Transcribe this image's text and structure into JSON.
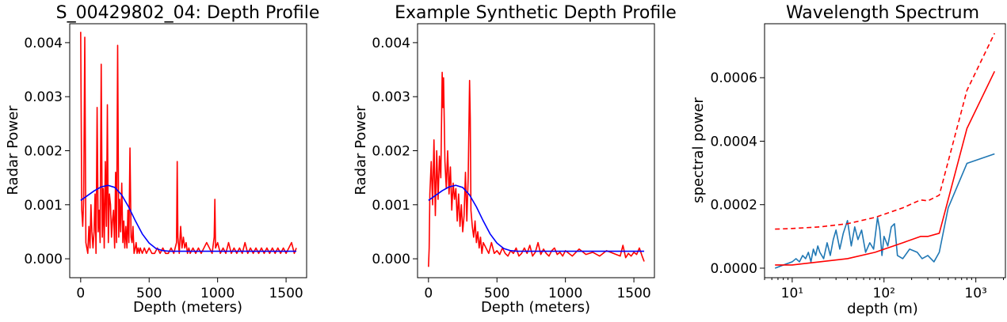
{
  "chart_data": [
    {
      "type": "line",
      "title": "S_00429802_04: Depth Profile",
      "xlabel": "Depth (meters)",
      "ylabel": "Radar Power",
      "xlim": [
        -80,
        1650
      ],
      "ylim": [
        -0.00035,
        0.00435
      ],
      "xticks": [
        0,
        500,
        1000,
        1500
      ],
      "yticks": [
        0.0,
        0.001,
        0.002,
        0.003,
        0.004
      ],
      "ytick_labels": [
        "0.000",
        "0.001",
        "0.002",
        "0.003",
        "0.004"
      ],
      "grid": false,
      "series": [
        {
          "color": "#ff0000",
          "x": [
            0,
            8,
            15,
            22,
            30,
            38,
            45,
            52,
            60,
            68,
            75,
            82,
            90,
            98,
            105,
            112,
            120,
            128,
            135,
            142,
            150,
            158,
            165,
            172,
            180,
            188,
            195,
            202,
            210,
            218,
            225,
            232,
            240,
            248,
            255,
            262,
            270,
            278,
            285,
            292,
            300,
            308,
            315,
            322,
            330,
            338,
            345,
            352,
            360,
            368,
            375,
            382,
            390,
            398,
            405,
            412,
            420,
            428,
            435,
            450,
            465,
            480,
            500,
            520,
            540,
            560,
            580,
            600,
            620,
            640,
            660,
            680,
            700,
            705,
            710,
            720,
            730,
            740,
            750,
            760,
            770,
            780,
            790,
            800,
            820,
            840,
            860,
            880,
            900,
            920,
            940,
            960,
            975,
            980,
            985,
            1000,
            1020,
            1040,
            1060,
            1080,
            1100,
            1120,
            1140,
            1160,
            1180,
            1200,
            1220,
            1240,
            1260,
            1280,
            1300,
            1320,
            1340,
            1360,
            1380,
            1400,
            1420,
            1440,
            1460,
            1480,
            1500,
            1520,
            1540,
            1560,
            1575
          ],
          "y": [
            0.0042,
            0.0009,
            0.0006,
            0.0011,
            0.0041,
            0.0003,
            0.0002,
            0.0001,
            0.0006,
            0.0002,
            0.001,
            0.0005,
            0.0002,
            0.0005,
            0.0012,
            0.0001,
            0.0028,
            0.0005,
            0.0009,
            0.0003,
            0.0036,
            0.0004,
            0.0013,
            0.0002,
            0.0018,
            0.0006,
            0.00285,
            0.0003,
            0.0012,
            0.001,
            0.0004,
            0.0007,
            0.0009,
            0.0002,
            0.0016,
            0.0003,
            0.00395,
            0.0004,
            0.0011,
            0.0005,
            0.0014,
            0.0003,
            0.0007,
            0.0002,
            0.0006,
            0.0002,
            0.0009,
            0.0003,
            0.00205,
            0.0004,
            0.0003,
            0.0006,
            0.0001,
            0.0002,
            0.0003,
            0.0001,
            0.0002,
            0.0001,
            0.0002,
            0.0001,
            0.0002,
            0.0001,
            0.0002,
            0.0001,
            0.0001,
            0.0002,
            0.0001,
            0.0002,
            0.0001,
            0.0001,
            0.0002,
            0.0001,
            0.0003,
            0.0018,
            0.0004,
            0.0001,
            0.0006,
            0.0002,
            0.0004,
            0.0002,
            0.0003,
            0.0001,
            0.0002,
            0.0001,
            0.0002,
            0.0001,
            0.0002,
            0.0001,
            0.0002,
            0.0003,
            0.0002,
            0.0001,
            0.0004,
            0.0011,
            0.0002,
            0.0003,
            0.0001,
            0.0002,
            0.0001,
            0.0003,
            0.0001,
            0.0002,
            0.0001,
            0.0002,
            0.0001,
            0.0003,
            0.0001,
            0.0002,
            0.0001,
            0.0002,
            0.0001,
            0.0002,
            0.0001,
            0.0002,
            0.0001,
            0.0002,
            0.0001,
            0.0002,
            0.0001,
            0.0002,
            0.0001,
            0.0002,
            0.0003,
            0.0001,
            0.0002
          ]
        },
        {
          "color": "#0000ff",
          "x": [
            0,
            50,
            100,
            150,
            200,
            250,
            300,
            350,
            400,
            450,
            500,
            550,
            600,
            650,
            700,
            800,
            1000,
            1200,
            1400,
            1575
          ],
          "y": [
            0.00108,
            0.00117,
            0.00126,
            0.00133,
            0.00136,
            0.00132,
            0.00118,
            0.00096,
            0.0007,
            0.00046,
            0.00029,
            0.00019,
            0.00015,
            0.00014,
            0.00014,
            0.00014,
            0.00014,
            0.00014,
            0.00014,
            0.00014
          ]
        }
      ]
    },
    {
      "type": "line",
      "title": "Example Synthetic Depth Profile",
      "xlabel": "Depth (meters)",
      "ylabel": "Radar Power",
      "xlim": [
        -80,
        1650
      ],
      "ylim": [
        -0.00035,
        0.00435
      ],
      "xticks": [
        0,
        500,
        1000,
        1500
      ],
      "yticks": [
        0.0,
        0.001,
        0.002,
        0.003,
        0.004
      ],
      "ytick_labels": [
        "0.000",
        "0.001",
        "0.002",
        "0.003",
        "0.004"
      ],
      "grid": false,
      "series": [
        {
          "color": "#ff0000",
          "x": [
            0,
            5,
            10,
            20,
            30,
            40,
            50,
            60,
            70,
            80,
            90,
            100,
            105,
            110,
            120,
            130,
            140,
            150,
            160,
            170,
            180,
            190,
            200,
            210,
            220,
            230,
            240,
            250,
            260,
            270,
            280,
            290,
            300,
            305,
            310,
            320,
            330,
            340,
            350,
            360,
            370,
            380,
            390,
            400,
            420,
            440,
            460,
            480,
            500,
            520,
            540,
            560,
            580,
            600,
            620,
            640,
            660,
            680,
            700,
            720,
            740,
            760,
            780,
            800,
            820,
            840,
            860,
            880,
            900,
            920,
            940,
            960,
            980,
            1000,
            1050,
            1100,
            1150,
            1200,
            1250,
            1300,
            1350,
            1400,
            1420,
            1440,
            1460,
            1480,
            1500,
            1520,
            1540,
            1560,
            1575
          ],
          "y": [
            -0.00015,
            0.0002,
            0.0012,
            0.0018,
            0.001,
            0.0022,
            0.0008,
            0.002,
            0.0011,
            0.0019,
            0.0015,
            0.00345,
            0.0028,
            0.00335,
            0.0018,
            0.0013,
            0.002,
            0.0012,
            0.0017,
            0.0009,
            0.0014,
            0.0011,
            0.0013,
            0.0007,
            0.0012,
            0.0006,
            0.001,
            0.0005,
            0.0008,
            0.0016,
            0.0007,
            0.0015,
            0.0033,
            0.0026,
            0.0009,
            0.0006,
            0.0004,
            0.0007,
            0.0003,
            0.0005,
            0.0002,
            0.0004,
            0.0001,
            0.0003,
            0.0002,
            0.0001,
            0.0003,
            0.0001,
            0.00015,
            8e-05,
            0.0002,
            0.0001,
            5e-05,
            0.00015,
            0.0001,
            0.0002,
            5e-05,
            0.0001,
            0.0002,
            0.0001,
            0.00025,
            5e-05,
            0.00012,
            0.0003,
            8e-05,
            0.00018,
            0.0001,
            5e-05,
            0.00015,
            0.0002,
            8e-05,
            0.00012,
            5e-05,
            0.00015,
            5e-05,
            0.00018,
            8e-05,
            0.00012,
            5e-05,
            0.00015,
            0.0001,
            5e-05,
            0.00025,
            2e-05,
            0.0001,
            5e-05,
            0.00012,
            8e-05,
            0.0002,
            5e-05,
            -5e-05
          ]
        },
        {
          "color": "#0000ff",
          "x": [
            0,
            50,
            100,
            150,
            200,
            250,
            300,
            350,
            400,
            450,
            500,
            550,
            600,
            650,
            700,
            800,
            1000,
            1200,
            1400,
            1575
          ],
          "y": [
            0.00108,
            0.00117,
            0.00126,
            0.00133,
            0.00136,
            0.00132,
            0.00118,
            0.00096,
            0.0007,
            0.00046,
            0.00029,
            0.00019,
            0.00015,
            0.00014,
            0.00014,
            0.00014,
            0.00014,
            0.00014,
            0.00014,
            0.00014
          ]
        }
      ]
    },
    {
      "type": "line",
      "title": "Wavelength Spectrum",
      "xlabel": "depth (m)",
      "ylabel": "spectral power",
      "xscale": "log",
      "xlim": [
        5,
        2100
      ],
      "ylim": [
        -3e-05,
        0.00077
      ],
      "xticks": [
        10,
        100,
        1000
      ],
      "xtick_labels": [
        "10¹",
        "10²",
        "10³"
      ],
      "yticks": [
        0.0,
        0.0002,
        0.0004,
        0.0006
      ],
      "ytick_labels": [
        "0.0000",
        "0.0002",
        "0.0004",
        "0.0006"
      ],
      "grid": false,
      "series": [
        {
          "color": "#1f77b4",
          "dash": "solid",
          "x": [
            6.5,
            8,
            10,
            11,
            12,
            13,
            14,
            15,
            16,
            17,
            18,
            19,
            20,
            22,
            24,
            26,
            28,
            30,
            33,
            36,
            40,
            44,
            48,
            52,
            57,
            63,
            70,
            77,
            85,
            90,
            95,
            100,
            110,
            120,
            130,
            140,
            160,
            190,
            230,
            260,
            300,
            350,
            400,
            500,
            800,
            1600
          ],
          "y": [
            0.0,
            1e-05,
            2e-05,
            3e-05,
            2e-05,
            4e-05,
            3e-05,
            5e-05,
            2e-05,
            6e-05,
            4e-05,
            7e-05,
            5e-05,
            3e-05,
            8e-05,
            4e-05,
            9e-05,
            0.00012,
            6e-05,
            0.00011,
            0.00015,
            7e-05,
            0.00013,
            9e-05,
            0.00012,
            5e-05,
            8e-05,
            6e-05,
            0.00016,
            0.00012,
            4e-05,
            0.0001,
            7e-05,
            0.00013,
            0.00014,
            4e-05,
            3e-05,
            6e-05,
            5e-05,
            3e-05,
            4e-05,
            2e-05,
            5e-05,
            0.00019,
            0.00033,
            0.00036
          ]
        },
        {
          "color": "#ff0000",
          "dash": "solid",
          "x": [
            6.5,
            10,
            20,
            40,
            80,
            160,
            250,
            300,
            400,
            800,
            1600
          ],
          "y": [
            1e-05,
            1e-05,
            2e-05,
            3e-05,
            5e-05,
            8e-05,
            0.0001,
            0.0001,
            0.00011,
            0.00044,
            0.00062
          ]
        },
        {
          "color": "#ff0000",
          "dash": "dashed",
          "x": [
            6.5,
            10,
            20,
            40,
            80,
            160,
            250,
            300,
            400,
            800,
            1600
          ],
          "y": [
            0.000123,
            0.000125,
            0.00013,
            0.00014,
            0.00016,
            0.00019,
            0.000215,
            0.000212,
            0.00023,
            0.00056,
            0.00074
          ]
        }
      ]
    }
  ]
}
